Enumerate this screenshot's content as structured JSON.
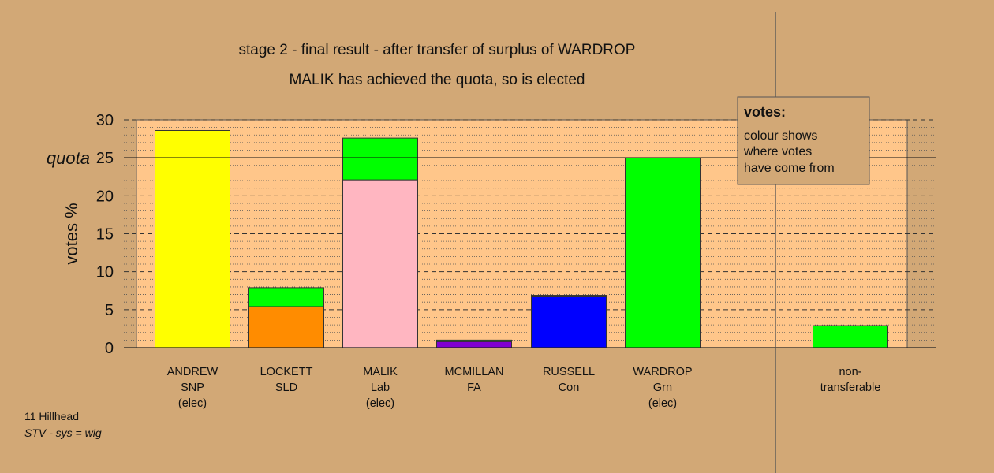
{
  "header": {
    "title": "stage 2 - final result - after transfer of surplus of WARDROP",
    "subtitle": "MALIK has achieved the quota, so is elected"
  },
  "footer": {
    "constituency": "11 Hillhead",
    "system": "STV - sys = wig"
  },
  "legend": {
    "heading": "votes:",
    "lines": [
      "colour shows",
      "where votes",
      "have come from"
    ]
  },
  "colors": {
    "background": "#d2a876",
    "plot_area": "#ffc68a",
    "SNP": "#ffff00",
    "SLD": "#ff8c00",
    "Lab": "#ffb6c1",
    "FA": "#8000d0",
    "Con": "#0000ff",
    "Grn": "#00ff00"
  },
  "chart_data": {
    "type": "bar",
    "stacked": true,
    "ylabel": "votes %",
    "quota_label": "quota",
    "quota": 25,
    "ylim": [
      0,
      30
    ],
    "yticks": [
      0,
      5,
      10,
      15,
      20,
      25,
      30
    ],
    "grid": true,
    "legend_position": "top-right",
    "categories": [
      {
        "lines": [
          "ANDREW",
          "SNP",
          "(elec)"
        ]
      },
      {
        "lines": [
          "LOCKETT",
          "SLD"
        ]
      },
      {
        "lines": [
          "MALIK",
          "Lab",
          "(elec)"
        ]
      },
      {
        "lines": [
          "MCMILLAN",
          "FA"
        ]
      },
      {
        "lines": [
          "RUSSELL",
          "Con"
        ]
      },
      {
        "lines": [
          "WARDROP",
          "Grn",
          "(elec)"
        ]
      },
      {
        "lines": [
          "non-",
          "transferable"
        ]
      }
    ],
    "bars": [
      {
        "segments": [
          {
            "from": "SNP",
            "value": 28.6
          }
        ]
      },
      {
        "segments": [
          {
            "from": "SLD",
            "value": 5.4
          },
          {
            "from": "Grn",
            "value": 2.5
          }
        ]
      },
      {
        "segments": [
          {
            "from": "Lab",
            "value": 22.1
          },
          {
            "from": "Grn",
            "value": 5.5
          }
        ]
      },
      {
        "segments": [
          {
            "from": "FA",
            "value": 0.8
          },
          {
            "from": "Grn",
            "value": 0.2
          }
        ]
      },
      {
        "segments": [
          {
            "from": "Con",
            "value": 6.7
          },
          {
            "from": "Grn",
            "value": 0.2
          }
        ]
      },
      {
        "segments": [
          {
            "from": "Grn",
            "value": 25.0
          }
        ]
      },
      {
        "segments": [
          {
            "from": "Grn",
            "value": 2.9
          }
        ]
      }
    ]
  }
}
